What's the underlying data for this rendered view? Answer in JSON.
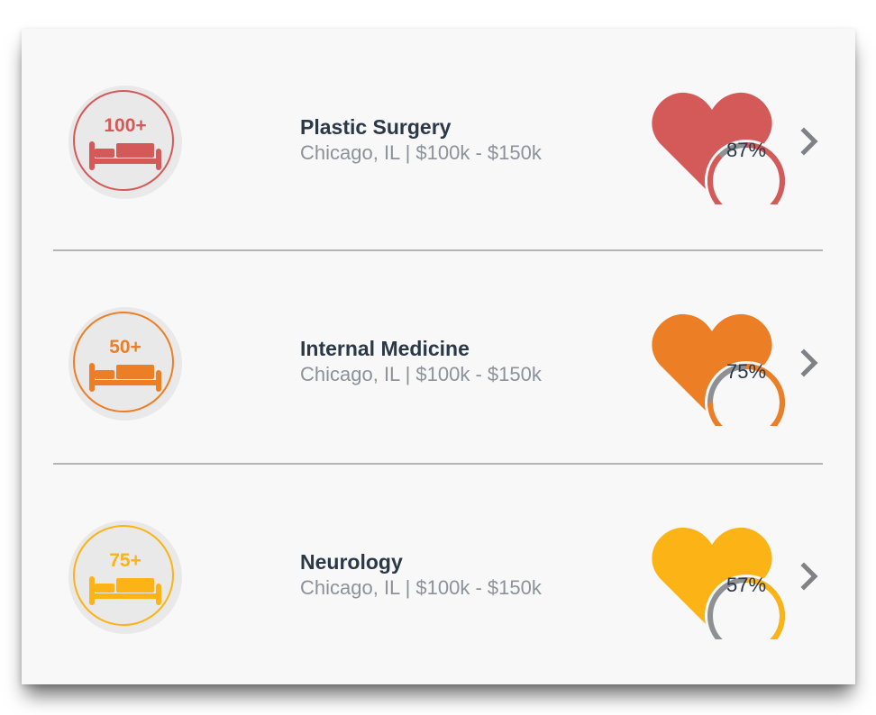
{
  "specialties": [
    {
      "title": "Plastic Surgery",
      "subtitle": "Chicago, IL | $100k - $150k",
      "bed_count": "100+",
      "match_percent_label": "87%",
      "match_value": 87,
      "color": "#d35a58",
      "icon": "bed-icon"
    },
    {
      "title": "Internal Medicine",
      "subtitle": "Chicago, IL | $100k - $150k",
      "bed_count": "50+",
      "match_percent_label": "75%",
      "match_value": 75,
      "color": "#ec7f26",
      "icon": "bed-icon"
    },
    {
      "title": "Neurology",
      "subtitle": "Chicago, IL | $100k - $150k",
      "bed_count": "75+",
      "match_percent_label": "57%",
      "match_value": 57,
      "color": "#fbb316",
      "icon": "bed-icon"
    }
  ],
  "track_color": "#8e9094",
  "chevron_icon": "chevron-right-icon"
}
